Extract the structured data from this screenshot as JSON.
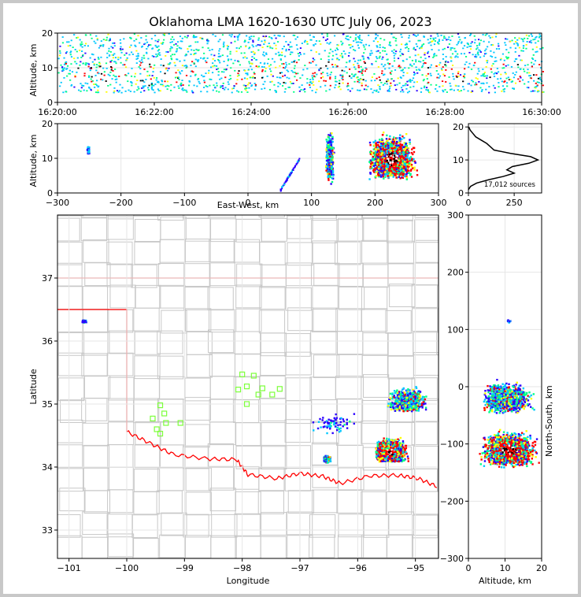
{
  "title": "Oklahoma LMA 1620-1630 UTC July 06, 2023",
  "colors": {
    "density_scale": [
      "#2a00ff",
      "#00c8ff",
      "#00ff88",
      "#ffff00",
      "#ff0000",
      "#ffffff"
    ],
    "state_border": "#ff0000",
    "county_lines": "#c8c8c8",
    "stations": "#7cff3a",
    "histogram_line": "#000000",
    "grid": "#e6e6e6"
  },
  "chart_data": [
    {
      "panel": "time_altitude",
      "type": "scatter",
      "xlabel": "",
      "ylabel": "Altitude, km",
      "x_ticks": [
        "16:20:00",
        "16:22:00",
        "16:24:00",
        "16:26:00",
        "16:28:00",
        "16:30:00"
      ],
      "x_range_minutes": [
        0,
        10
      ],
      "ylim": [
        0,
        20
      ],
      "y_ticks": [
        0,
        10,
        20
      ],
      "density_bands_km": [
        3,
        18
      ],
      "core_km": [
        5,
        12
      ]
    },
    {
      "panel": "east_west_altitude",
      "type": "scatter",
      "xlabel": "East-West, km",
      "ylabel": "Altitude, km",
      "xlim": [
        -300,
        300
      ],
      "x_ticks": [
        -300,
        -200,
        -100,
        0,
        100,
        200,
        300
      ],
      "ylim": [
        0,
        20
      ],
      "y_ticks": [
        0,
        10,
        20
      ],
      "clusters": [
        {
          "x_km": [
            120,
            135
          ],
          "alt_km": [
            2,
            19
          ],
          "level": "medium"
        },
        {
          "x_km": [
            190,
            280
          ],
          "alt_km": [
            4,
            20
          ],
          "level": "high",
          "core_x_km": 225,
          "core_alt_km": 10
        },
        {
          "x_km": [
            50,
            80
          ],
          "alt_km": [
            1,
            10
          ],
          "level": "low"
        },
        {
          "x_km": [
            -255,
            -250
          ],
          "alt_km": [
            11,
            14
          ],
          "level": "low"
        }
      ]
    },
    {
      "panel": "altitude_histogram",
      "type": "line",
      "xlabel": "",
      "ylabel": "",
      "xlim": [
        0,
        400
      ],
      "x_ticks": [
        0,
        250
      ],
      "ylim": [
        0,
        21
      ],
      "y_ticks": [
        0,
        10,
        20
      ],
      "annotation": "17,012 sources",
      "profile": [
        {
          "alt": 1,
          "count": 0
        },
        {
          "alt": 2,
          "count": 12
        },
        {
          "alt": 3,
          "count": 45
        },
        {
          "alt": 4,
          "count": 110
        },
        {
          "alt": 5,
          "count": 190
        },
        {
          "alt": 6,
          "count": 250
        },
        {
          "alt": 7,
          "count": 210
        },
        {
          "alt": 8,
          "count": 240
        },
        {
          "alt": 9,
          "count": 330
        },
        {
          "alt": 10,
          "count": 380
        },
        {
          "alt": 11,
          "count": 340
        },
        {
          "alt": 12,
          "count": 230
        },
        {
          "alt": 13,
          "count": 140
        },
        {
          "alt": 14,
          "count": 120
        },
        {
          "alt": 15,
          "count": 100
        },
        {
          "alt": 16,
          "count": 70
        },
        {
          "alt": 17,
          "count": 40
        },
        {
          "alt": 18,
          "count": 25
        },
        {
          "alt": 19,
          "count": 10
        },
        {
          "alt": 20,
          "count": 2
        }
      ]
    },
    {
      "panel": "plan_view",
      "type": "scatter",
      "xlabel": "Longitude",
      "ylabel": "Latitude",
      "xlim": [
        -101.2,
        -94.6
      ],
      "x_ticks": [
        -101,
        -100,
        -99,
        -98,
        -97,
        -96,
        -95
      ],
      "ylim": [
        32.55,
        38.0
      ],
      "y_ticks": [
        33,
        34,
        35,
        36,
        37
      ],
      "stations": [
        {
          "lon": -99.55,
          "lat": 34.77
        },
        {
          "lon": -99.42,
          "lat": 34.98
        },
        {
          "lon": -99.35,
          "lat": 34.85
        },
        {
          "lon": -99.48,
          "lat": 34.6
        },
        {
          "lon": -99.42,
          "lat": 34.53
        },
        {
          "lon": -99.32,
          "lat": 34.7
        },
        {
          "lon": -99.07,
          "lat": 34.7
        },
        {
          "lon": -98.0,
          "lat": 35.47
        },
        {
          "lon": -97.8,
          "lat": 35.45
        },
        {
          "lon": -97.92,
          "lat": 35.28
        },
        {
          "lon": -98.07,
          "lat": 35.23
        },
        {
          "lon": -97.72,
          "lat": 35.15
        },
        {
          "lon": -97.65,
          "lat": 35.25
        },
        {
          "lon": -97.48,
          "lat": 35.15
        },
        {
          "lon": -97.35,
          "lat": 35.24
        },
        {
          "lon": -97.92,
          "lat": 35.0
        }
      ],
      "clusters": [
        {
          "lon": [
            -95.7,
            -95.0
          ],
          "lat": [
            34.1,
            34.6
          ],
          "level": "high",
          "core_lon": -95.45,
          "core_lat": 34.25
        },
        {
          "lon": [
            -95.6,
            -94.8
          ],
          "lat": [
            34.9,
            35.4
          ],
          "level": "medium",
          "core_lon": -95.15,
          "core_lat": 35.05
        },
        {
          "lon": [
            -96.6,
            -96.45
          ],
          "lat": [
            34.08,
            34.2
          ],
          "level": "medium",
          "core_lon": -96.55,
          "core_lat": 34.14
        },
        {
          "lon": [
            -96.9,
            -96.0
          ],
          "lat": [
            34.5,
            34.9
          ],
          "level": "low"
        },
        {
          "lon": [
            -100.8,
            -100.7
          ],
          "lat": [
            36.3,
            36.35
          ],
          "level": "low"
        }
      ]
    },
    {
      "panel": "altitude_north_south",
      "type": "scatter",
      "xlabel": "Altitude, km",
      "ylabel": "North-South, km",
      "xlim": [
        0,
        20
      ],
      "x_ticks": [
        0,
        10,
        20
      ],
      "ylim": [
        -300,
        300
      ],
      "y_ticks": [
        -300,
        -200,
        -100,
        0,
        100,
        200,
        300
      ],
      "clusters": [
        {
          "alt_km": [
            4,
            20
          ],
          "ns_km": [
            -45,
            25
          ],
          "level": "medium",
          "core_alt_km": 10,
          "core_ns_km": -20
        },
        {
          "alt_km": [
            2,
            20
          ],
          "ns_km": [
            -140,
            -65
          ],
          "level": "high",
          "core_alt_km": 11,
          "core_ns_km": -110
        },
        {
          "alt_km": [
            10,
            12
          ],
          "ns_km": [
            112,
            120
          ],
          "level": "low"
        }
      ]
    }
  ]
}
